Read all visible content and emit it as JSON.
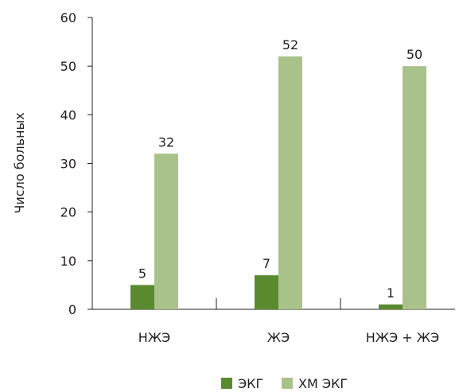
{
  "chart_data": {
    "type": "bar",
    "title": "",
    "xlabel": "",
    "ylabel": "Число больных",
    "categories": [
      "НЖЭ",
      "ЖЭ",
      "НЖЭ + ЖЭ"
    ],
    "series": [
      {
        "name": "ЭКГ",
        "values": [
          5,
          7,
          1
        ],
        "color": "#5a8a2e"
      },
      {
        "name": "ХМ ЭКГ",
        "values": [
          32,
          52,
          50
        ],
        "color": "#a9c28a"
      }
    ],
    "ylim": [
      0,
      60
    ],
    "yticks": [
      0,
      10,
      20,
      30,
      40,
      50,
      60
    ],
    "grid": false,
    "legend_position": "bottom"
  }
}
